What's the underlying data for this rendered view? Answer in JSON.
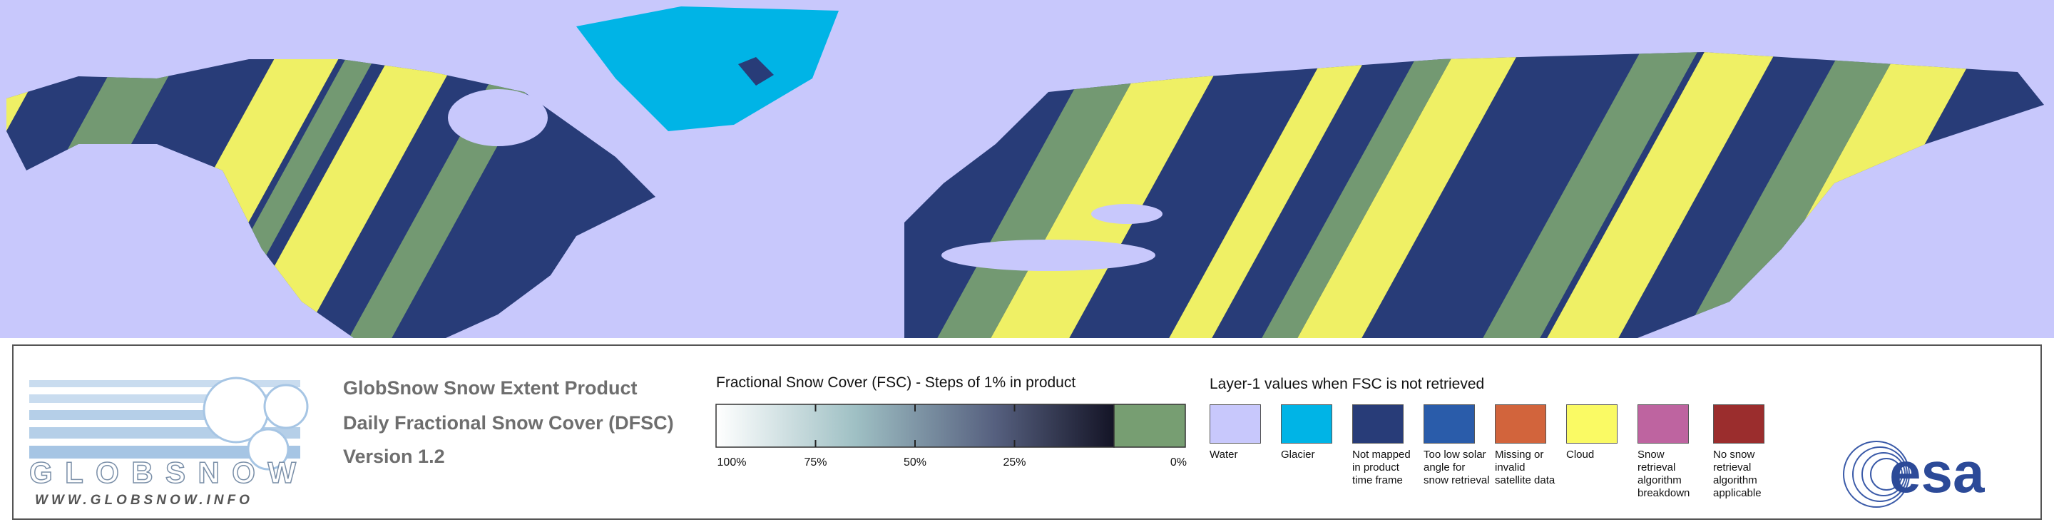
{
  "logo": {
    "name": "GLOBSNOW",
    "url": "WWW.GLOBSNOW.INFO"
  },
  "product": {
    "title": "GlobSnow Snow Extent Product",
    "subtitle": "Daily Fractional Snow Cover (DFSC)",
    "version": "Version 1.2"
  },
  "fsc_scale": {
    "title": "Fractional Snow Cover (FSC) - Steps of 1% in product",
    "ticks": [
      {
        "value": 100,
        "label": "100%"
      },
      {
        "value": 75,
        "label": "75%"
      },
      {
        "value": 50,
        "label": "50%"
      },
      {
        "value": 25,
        "label": "25%"
      },
      {
        "value": 0,
        "label": "0%"
      }
    ],
    "zero_color": "#779e72"
  },
  "layer1_legend": {
    "title": "Layer-1 values when FSC is not retrieved",
    "items": [
      {
        "label": "Water",
        "color": "#c8c8fc"
      },
      {
        "label": "Glacier",
        "color": "#00b4e6"
      },
      {
        "label": "Not mapped in product time frame",
        "color": "#283c78"
      },
      {
        "label": "Too low solar angle for snow retrieval",
        "color": "#2a5caa"
      },
      {
        "label": "Missing or invalid satellite data",
        "color": "#d2643c"
      },
      {
        "label": "Cloud",
        "color": "#fafa64"
      },
      {
        "label": "Snow retrieval algorithm breakdown",
        "color": "#be64a0"
      },
      {
        "label": "No snow retrieval algorithm applicable",
        "color": "#9b2d2d"
      }
    ]
  },
  "agency": "esa"
}
